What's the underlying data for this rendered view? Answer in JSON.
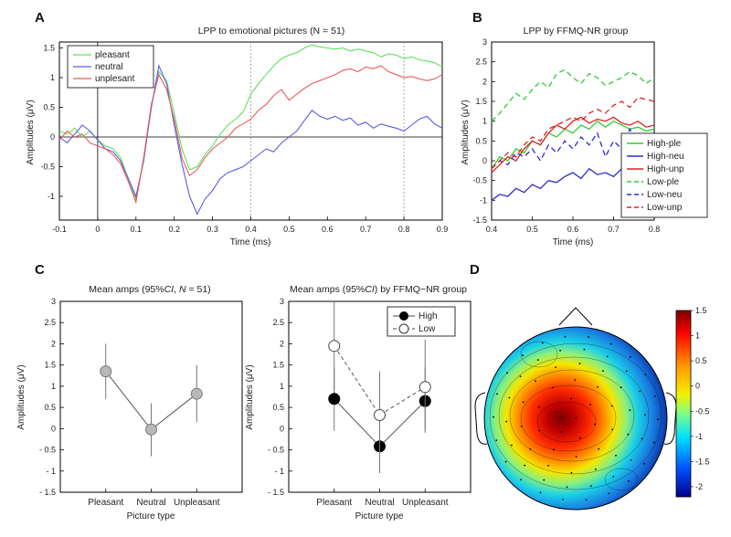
{
  "panel_labels": [
    "A",
    "B",
    "C",
    "D"
  ],
  "chart_data": [
    {
      "id": "A",
      "type": "line",
      "title": "LPP to emotional pictures (N = 51)",
      "xlabel": "Time (ms)",
      "ylabel": "Amplitudes (μV)",
      "xlim": [
        -0.1,
        0.9
      ],
      "ylim": [
        -1.4,
        1.6
      ],
      "xticks": [
        "-0.1",
        "0",
        "0.1",
        "0.2",
        "0.3",
        "0.4",
        "0.5",
        "0.6",
        "0.7",
        "0.8",
        "0.9"
      ],
      "yticks": [
        "-1",
        "-0.5",
        "0",
        "0.5",
        "1",
        "1.5"
      ],
      "reference_lines": [
        0.4,
        0.8
      ],
      "legend_position": "top-left",
      "series": [
        {
          "name": "pleasant",
          "color": "#5fe05f",
          "x": [
            -0.1,
            -0.08,
            -0.06,
            -0.04,
            -0.02,
            0,
            0.02,
            0.04,
            0.06,
            0.08,
            0.1,
            0.12,
            0.14,
            0.16,
            0.18,
            0.2,
            0.22,
            0.24,
            0.26,
            0.28,
            0.3,
            0.32,
            0.34,
            0.36,
            0.38,
            0.4,
            0.42,
            0.44,
            0.46,
            0.48,
            0.5,
            0.52,
            0.54,
            0.56,
            0.58,
            0.6,
            0.62,
            0.64,
            0.66,
            0.68,
            0.7,
            0.72,
            0.74,
            0.76,
            0.78,
            0.8,
            0.82,
            0.84,
            0.86,
            0.88,
            0.9
          ],
          "y": [
            0.1,
            0.05,
            0.15,
            0.0,
            0.1,
            -0.05,
            -0.15,
            -0.2,
            -0.35,
            -0.7,
            -1.05,
            -0.4,
            0.5,
            1.1,
            0.95,
            0.4,
            -0.2,
            -0.55,
            -0.5,
            -0.3,
            -0.15,
            0.05,
            0.2,
            0.3,
            0.42,
            0.72,
            0.9,
            1.05,
            1.2,
            1.32,
            1.38,
            1.42,
            1.5,
            1.55,
            1.52,
            1.5,
            1.48,
            1.5,
            1.45,
            1.48,
            1.45,
            1.42,
            1.35,
            1.4,
            1.38,
            1.32,
            1.35,
            1.3,
            1.28,
            1.25,
            1.18
          ]
        },
        {
          "name": "neutral",
          "color": "#5a5ae6",
          "x": [
            -0.1,
            -0.08,
            -0.06,
            -0.04,
            -0.02,
            0,
            0.02,
            0.04,
            0.06,
            0.08,
            0.1,
            0.12,
            0.14,
            0.16,
            0.18,
            0.2,
            0.22,
            0.24,
            0.26,
            0.28,
            0.3,
            0.32,
            0.34,
            0.36,
            0.38,
            0.4,
            0.42,
            0.44,
            0.46,
            0.48,
            0.5,
            0.52,
            0.54,
            0.56,
            0.58,
            0.6,
            0.62,
            0.64,
            0.66,
            0.68,
            0.7,
            0.72,
            0.74,
            0.76,
            0.78,
            0.8,
            0.82,
            0.84,
            0.86,
            0.88,
            0.9
          ],
          "y": [
            0.0,
            -0.1,
            0.05,
            0.2,
            0.1,
            -0.05,
            -0.2,
            -0.25,
            -0.4,
            -0.7,
            -1.0,
            -0.4,
            0.5,
            1.2,
            0.9,
            0.2,
            -0.45,
            -1.0,
            -1.3,
            -1.05,
            -0.9,
            -0.7,
            -0.6,
            -0.55,
            -0.5,
            -0.4,
            -0.3,
            -0.2,
            -0.25,
            -0.1,
            0.0,
            0.1,
            0.28,
            0.45,
            0.35,
            0.3,
            0.35,
            0.28,
            0.32,
            0.2,
            0.25,
            0.15,
            0.22,
            0.18,
            0.15,
            0.1,
            0.2,
            0.3,
            0.35,
            0.22,
            0.15
          ]
        },
        {
          "name": "unplesant",
          "color": "#ea5a5a",
          "x": [
            -0.1,
            -0.08,
            -0.06,
            -0.04,
            -0.02,
            0,
            0.02,
            0.04,
            0.06,
            0.08,
            0.1,
            0.12,
            0.14,
            0.16,
            0.18,
            0.2,
            0.22,
            0.24,
            0.26,
            0.28,
            0.3,
            0.32,
            0.34,
            0.36,
            0.38,
            0.4,
            0.42,
            0.44,
            0.46,
            0.48,
            0.5,
            0.52,
            0.54,
            0.56,
            0.58,
            0.6,
            0.62,
            0.64,
            0.66,
            0.68,
            0.7,
            0.72,
            0.74,
            0.76,
            0.78,
            0.8,
            0.82,
            0.84,
            0.86,
            0.88,
            0.9
          ],
          "y": [
            -0.05,
            0.1,
            0.0,
            0.05,
            -0.1,
            -0.15,
            -0.2,
            -0.3,
            -0.45,
            -0.75,
            -1.1,
            -0.35,
            0.55,
            1.05,
            0.8,
            0.3,
            -0.35,
            -0.65,
            -0.55,
            -0.35,
            -0.2,
            -0.1,
            0.0,
            0.15,
            0.22,
            0.3,
            0.45,
            0.55,
            0.7,
            0.8,
            0.62,
            0.72,
            0.82,
            0.9,
            0.95,
            1.0,
            1.05,
            1.12,
            1.15,
            1.1,
            1.18,
            1.15,
            1.2,
            1.1,
            1.05,
            1.0,
            1.02,
            0.98,
            0.95,
            0.98,
            1.05
          ]
        }
      ]
    },
    {
      "id": "B",
      "type": "line",
      "title": "LPP by FFMQ-NR group",
      "xlabel": "Time (ms)",
      "ylabel": "Amplitudes (μV)",
      "xlim": [
        0.4,
        0.8
      ],
      "ylim": [
        -1.5,
        3
      ],
      "xticks": [
        "0.4",
        "0.5",
        "0.6",
        "0.7",
        "0.8"
      ],
      "yticks": [
        "-1.5",
        "-1",
        "-0.5",
        "0",
        "0.5",
        "1",
        "1.5",
        "2",
        "2.5",
        "3"
      ],
      "legend_position": "bottom-right",
      "series": [
        {
          "name": "High-ple",
          "color": "#33cc33",
          "dash": false,
          "x": [
            0.4,
            0.42,
            0.44,
            0.46,
            0.48,
            0.5,
            0.52,
            0.54,
            0.56,
            0.58,
            0.6,
            0.62,
            0.64,
            0.66,
            0.68,
            0.7,
            0.72,
            0.74,
            0.76,
            0.78,
            0.8
          ],
          "y": [
            -0.2,
            0.1,
            0.0,
            0.3,
            0.2,
            0.5,
            0.4,
            0.7,
            0.6,
            0.8,
            0.7,
            0.9,
            0.8,
            1.0,
            0.85,
            1.0,
            0.9,
            0.8,
            0.85,
            0.75,
            0.8
          ]
        },
        {
          "name": "High-neu",
          "color": "#2b2bd4",
          "dash": false,
          "x": [
            0.4,
            0.42,
            0.44,
            0.46,
            0.48,
            0.5,
            0.52,
            0.54,
            0.56,
            0.58,
            0.6,
            0.62,
            0.64,
            0.66,
            0.68,
            0.7,
            0.72,
            0.74,
            0.76,
            0.78,
            0.8
          ],
          "y": [
            -1.0,
            -0.85,
            -0.9,
            -0.7,
            -0.8,
            -0.6,
            -0.7,
            -0.5,
            -0.55,
            -0.4,
            -0.3,
            -0.45,
            -0.2,
            -0.35,
            -0.3,
            -0.4,
            -0.2,
            -0.3,
            -0.15,
            -0.25,
            -0.2
          ]
        },
        {
          "name": "High-unp",
          "color": "#e02020",
          "dash": false,
          "x": [
            0.4,
            0.42,
            0.44,
            0.46,
            0.48,
            0.5,
            0.52,
            0.54,
            0.56,
            0.58,
            0.6,
            0.62,
            0.64,
            0.66,
            0.68,
            0.7,
            0.72,
            0.74,
            0.76,
            0.78,
            0.8
          ],
          "y": [
            -0.3,
            -0.1,
            0.1,
            0.0,
            0.3,
            0.5,
            0.4,
            0.7,
            0.9,
            0.8,
            1.0,
            1.1,
            0.95,
            1.05,
            1.0,
            1.1,
            0.95,
            0.9,
            1.0,
            0.85,
            0.9
          ]
        },
        {
          "name": "Low-ple",
          "color": "#33cc33",
          "dash": true,
          "x": [
            0.4,
            0.42,
            0.44,
            0.46,
            0.48,
            0.5,
            0.52,
            0.54,
            0.56,
            0.58,
            0.6,
            0.62,
            0.64,
            0.66,
            0.68,
            0.7,
            0.72,
            0.74,
            0.76,
            0.78,
            0.8
          ],
          "y": [
            1.0,
            1.2,
            1.45,
            1.7,
            1.55,
            1.8,
            2.0,
            1.85,
            2.2,
            2.3,
            2.1,
            1.95,
            2.2,
            2.1,
            1.9,
            2.0,
            2.1,
            2.25,
            2.15,
            1.95,
            2.1
          ]
        },
        {
          "name": "Low-neu",
          "color": "#2b2bd4",
          "dash": true,
          "x": [
            0.4,
            0.42,
            0.44,
            0.46,
            0.48,
            0.5,
            0.52,
            0.54,
            0.56,
            0.58,
            0.6,
            0.62,
            0.64,
            0.66,
            0.68,
            0.7,
            0.72,
            0.74,
            0.76,
            0.78,
            0.8
          ],
          "y": [
            -0.2,
            0.0,
            -0.1,
            0.2,
            0.1,
            0.3,
            0.0,
            0.4,
            0.2,
            0.5,
            0.3,
            0.6,
            0.4,
            0.7,
            0.1,
            0.5,
            0.3,
            0.8,
            0.4,
            0.6,
            0.5
          ]
        },
        {
          "name": "Low-unp",
          "color": "#e02020",
          "dash": true,
          "x": [
            0.4,
            0.42,
            0.44,
            0.46,
            0.48,
            0.5,
            0.52,
            0.54,
            0.56,
            0.58,
            0.6,
            0.62,
            0.64,
            0.66,
            0.68,
            0.7,
            0.72,
            0.74,
            0.76,
            0.78,
            0.8
          ],
          "y": [
            -0.2,
            0.0,
            0.2,
            0.1,
            0.4,
            0.6,
            0.5,
            0.8,
            0.9,
            1.0,
            1.1,
            1.0,
            1.2,
            1.3,
            1.2,
            1.4,
            1.5,
            1.35,
            1.6,
            1.55,
            1.5
          ]
        }
      ]
    },
    {
      "id": "C-left",
      "type": "line",
      "title": "Mean amps (95% CI, N = 51)",
      "xlabel": "Picture type",
      "ylabel": "Amplitudes (μV)",
      "ylim": [
        -1.5,
        3
      ],
      "yticks": [
        "- 1.5",
        "- 1",
        "- 0.5",
        "0",
        "0.5",
        "1",
        "1.5",
        "2",
        "2.5",
        "3"
      ],
      "categories": [
        "Pleasant",
        "Neutral",
        "Unpleasant"
      ],
      "series": [
        {
          "name": "",
          "marker": "filled-grey",
          "values": [
            1.35,
            -0.02,
            0.82
          ],
          "ci_low": [
            0.7,
            -0.65,
            0.15
          ],
          "ci_high": [
            2.0,
            0.6,
            1.5
          ]
        }
      ]
    },
    {
      "id": "C-right",
      "type": "line",
      "title": "Mean amps (95% CI) by FFMQ-NR group",
      "xlabel": "Picture type",
      "ylabel": "Amplitudes (μV)",
      "ylim": [
        -1.5,
        3
      ],
      "yticks": [
        "- 1.5",
        "- 1",
        "- 0.5",
        "0",
        "0.5",
        "1",
        "1.5",
        "2",
        "2.5",
        "3"
      ],
      "categories": [
        "Pleasant",
        "Neutral",
        "Unpleasant"
      ],
      "legend_position": "top-right",
      "series": [
        {
          "name": "High",
          "marker": "filled-black",
          "dash": false,
          "values": [
            0.7,
            -0.42,
            0.65
          ],
          "ci_low": [
            -0.05,
            -1.05,
            -0.05
          ],
          "ci_high": [
            1.45,
            0.2,
            1.45
          ]
        },
        {
          "name": "Low",
          "marker": "open-circle",
          "dash": true,
          "values": [
            1.95,
            0.32,
            0.98
          ],
          "ci_low": [
            0.9,
            -0.7,
            -0.1
          ],
          "ci_high": [
            3.0,
            1.35,
            2.1
          ]
        }
      ]
    },
    {
      "id": "D",
      "type": "heatmap",
      "subtype": "scalp-topography",
      "colorbar_ticks": [
        "1.5",
        "1",
        "0.5",
        "0",
        "-0.5",
        "-1",
        "-1.5",
        "-2"
      ],
      "colorbar_range": [
        -2.2,
        1.5
      ]
    }
  ]
}
